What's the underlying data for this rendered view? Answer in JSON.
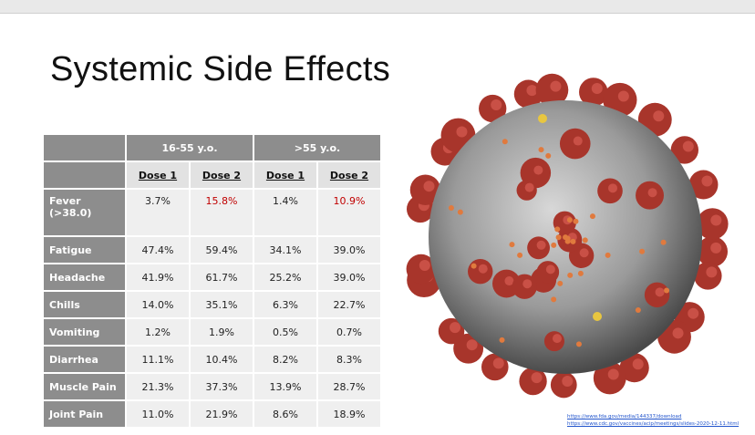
{
  "title": "Systemic Side Effects",
  "table": {
    "groups": [
      "16-55 y.o.",
      ">55 y.o."
    ],
    "doses": [
      "Dose 1",
      "Dose 2",
      "Dose 1",
      "Dose 2"
    ],
    "rows": [
      {
        "label": "Fever (>38.0)",
        "cells": [
          "3.7%",
          {
            "text": "15.8%",
            "color": "#c00000"
          },
          "1.4%",
          {
            "text": "10.9%",
            "color": "#c00000"
          }
        ]
      },
      {
        "label": "Fatigue",
        "cells": [
          "47.4%",
          "59.4%",
          "34.1%",
          "39.0%"
        ]
      },
      {
        "label": "Headache",
        "cells": [
          "41.9%",
          "61.7%",
          "25.2%",
          "39.0%"
        ]
      },
      {
        "label": "Chills",
        "cells": [
          "14.0%",
          "35.1%",
          "6.3%",
          "22.7%"
        ]
      },
      {
        "label": "Vomiting",
        "cells": [
          "1.2%",
          "1.9%",
          "0.5%",
          "0.7%"
        ]
      },
      {
        "label": "Diarrhea",
        "cells": [
          "11.1%",
          "10.4%",
          "8.2%",
          "8.3%"
        ]
      },
      {
        "label": "Muscle Pain",
        "cells": [
          "21.3%",
          "37.3%",
          "13.9%",
          "28.7%"
        ]
      },
      {
        "label": "Joint Pain",
        "cells": [
          "11.0%",
          "21.9%",
          "8.6%",
          "18.9%"
        ]
      }
    ]
  },
  "sources": [
    "https://www.fda.gov/media/144337/download",
    "https://www.cdc.gov/vaccines/acip/meetings/slides-2020-12-11.html"
  ]
}
